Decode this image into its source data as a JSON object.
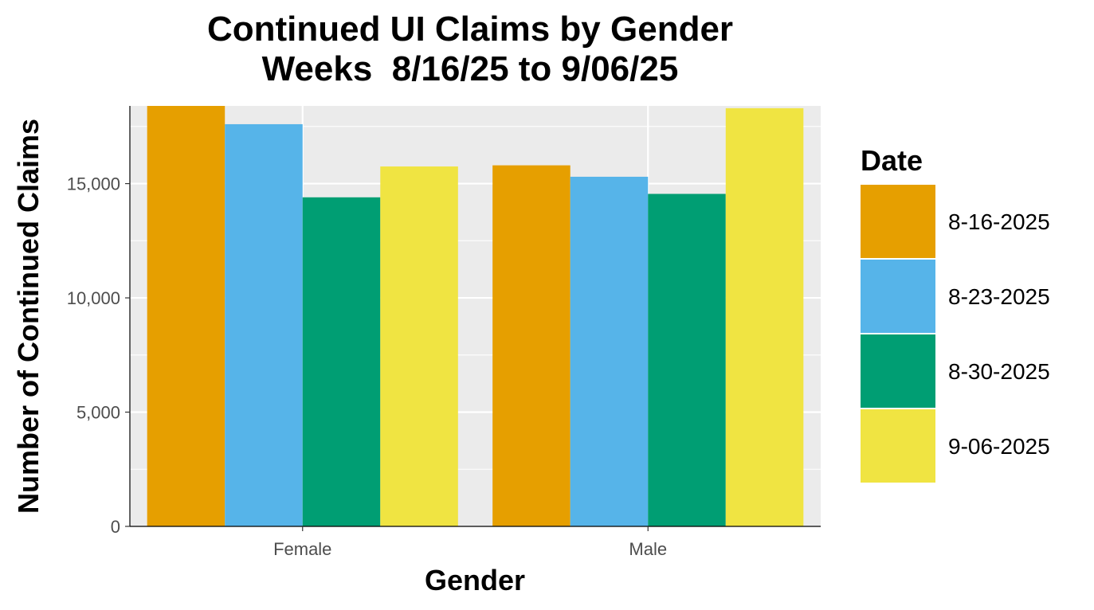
{
  "chart_data": {
    "type": "bar",
    "title_lines": [
      "Continued UI Claims by Gender",
      "Weeks  8/16/25 to 9/06/25"
    ],
    "xlabel": "Gender",
    "ylabel": "Number of Continued Claims",
    "categories": [
      "Female",
      "Male"
    ],
    "ylim": [
      0,
      18400
    ],
    "yticks": [
      0,
      5000,
      10000,
      15000
    ],
    "ytick_labels": [
      "0",
      "5,000",
      "10,000",
      "15,000"
    ],
    "grid": true,
    "legend_title": "Date",
    "legend_position": "right",
    "series": [
      {
        "name": "8-16-2025",
        "color": "#E69F00",
        "values": [
          18400,
          15800
        ]
      },
      {
        "name": "8-23-2025",
        "color": "#56B4E9",
        "values": [
          17600,
          15300
        ]
      },
      {
        "name": "8-30-2025",
        "color": "#009E73",
        "values": [
          14400,
          14550
        ]
      },
      {
        "name": "9-06-2025",
        "color": "#F0E442",
        "values": [
          15750,
          18300
        ]
      }
    ]
  }
}
